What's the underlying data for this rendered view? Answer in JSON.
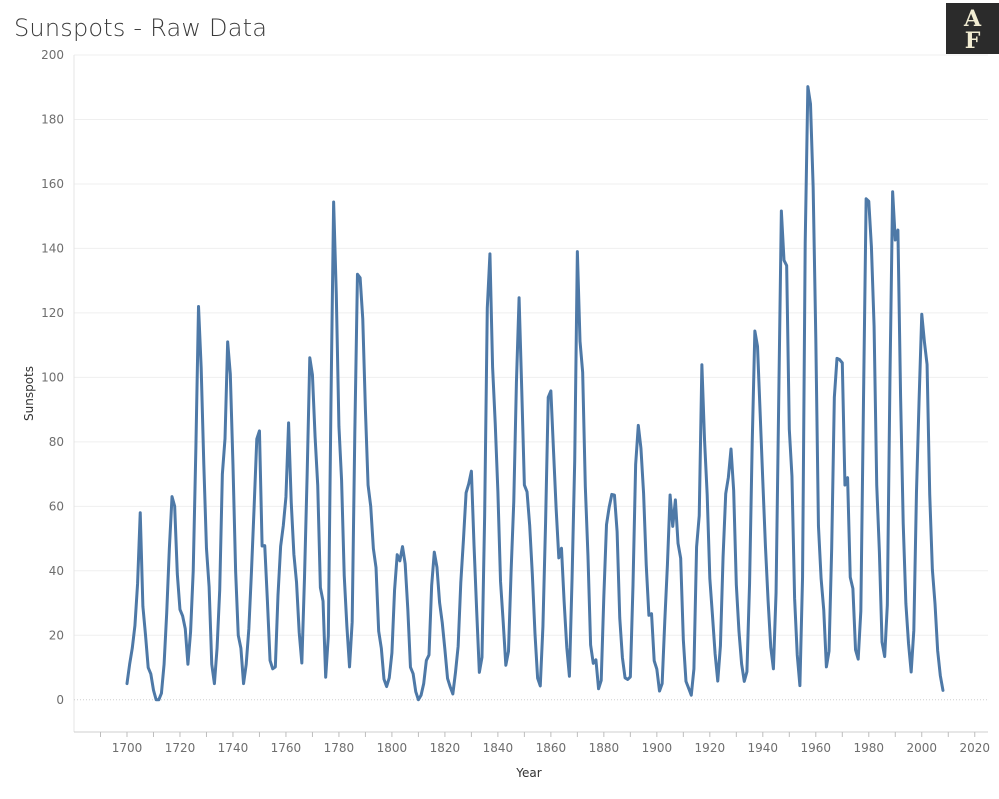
{
  "title": "Sunspots - Raw Data",
  "logo": {
    "icon": "af-monogram-logo",
    "text": "AF",
    "bg": "#2b2b2b",
    "fg": "#f1ecd2"
  },
  "chart_data": {
    "type": "line",
    "xlabel": "Year",
    "ylabel": "Sunspots",
    "xlim": [
      1680,
      2025
    ],
    "ylim": [
      -10,
      200
    ],
    "x_ticks": [
      1700,
      1720,
      1740,
      1760,
      1780,
      1800,
      1820,
      1840,
      1860,
      1880,
      1900,
      1920,
      1940,
      1960,
      1980,
      2000,
      2020
    ],
    "y_ticks": [
      0,
      20,
      40,
      60,
      80,
      100,
      120,
      140,
      160,
      180,
      200
    ],
    "x_tick_labels": [
      "1700",
      "1720",
      "1740",
      "1760",
      "1780",
      "1800",
      "1820",
      "1840",
      "1860",
      "1880",
      "1900",
      "1920",
      "1940",
      "1960",
      "1980",
      "2000",
      "2020"
    ],
    "y_tick_labels": [
      "0",
      "20",
      "40",
      "60",
      "80",
      "100",
      "120",
      "140",
      "160",
      "180",
      "200"
    ],
    "grid": true,
    "zero_line": "dotted",
    "color": "#4e79a7",
    "x": [
      1700,
      1701,
      1702,
      1703,
      1704,
      1705,
      1706,
      1707,
      1708,
      1709,
      1710,
      1711,
      1712,
      1713,
      1714,
      1715,
      1716,
      1717,
      1718,
      1719,
      1720,
      1721,
      1722,
      1723,
      1724,
      1725,
      1726,
      1727,
      1728,
      1729,
      1730,
      1731,
      1732,
      1733,
      1734,
      1735,
      1736,
      1737,
      1738,
      1739,
      1740,
      1741,
      1742,
      1743,
      1744,
      1745,
      1746,
      1747,
      1748,
      1749,
      1750,
      1751,
      1752,
      1753,
      1754,
      1755,
      1756,
      1757,
      1758,
      1759,
      1760,
      1761,
      1762,
      1763,
      1764,
      1765,
      1766,
      1767,
      1768,
      1769,
      1770,
      1771,
      1772,
      1773,
      1774,
      1775,
      1776,
      1777,
      1778,
      1779,
      1780,
      1781,
      1782,
      1783,
      1784,
      1785,
      1786,
      1787,
      1788,
      1789,
      1790,
      1791,
      1792,
      1793,
      1794,
      1795,
      1796,
      1797,
      1798,
      1799,
      1800,
      1801,
      1802,
      1803,
      1804,
      1805,
      1806,
      1807,
      1808,
      1809,
      1810,
      1811,
      1812,
      1813,
      1814,
      1815,
      1816,
      1817,
      1818,
      1819,
      1820,
      1821,
      1822,
      1823,
      1824,
      1825,
      1826,
      1827,
      1828,
      1829,
      1830,
      1831,
      1832,
      1833,
      1834,
      1835,
      1836,
      1837,
      1838,
      1839,
      1840,
      1841,
      1842,
      1843,
      1844,
      1845,
      1846,
      1847,
      1848,
      1849,
      1850,
      1851,
      1852,
      1853,
      1854,
      1855,
      1856,
      1857,
      1858,
      1859,
      1860,
      1861,
      1862,
      1863,
      1864,
      1865,
      1866,
      1867,
      1868,
      1869,
      1870,
      1871,
      1872,
      1873,
      1874,
      1875,
      1876,
      1877,
      1878,
      1879,
      1880,
      1881,
      1882,
      1883,
      1884,
      1885,
      1886,
      1887,
      1888,
      1889,
      1890,
      1891,
      1892,
      1893,
      1894,
      1895,
      1896,
      1897,
      1898,
      1899,
      1900,
      1901,
      1902,
      1903,
      1904,
      1905,
      1906,
      1907,
      1908,
      1909,
      1910,
      1911,
      1912,
      1913,
      1914,
      1915,
      1916,
      1917,
      1918,
      1919,
      1920,
      1921,
      1922,
      1923,
      1924,
      1925,
      1926,
      1927,
      1928,
      1929,
      1930,
      1931,
      1932,
      1933,
      1934,
      1935,
      1936,
      1937,
      1938,
      1939,
      1940,
      1941,
      1942,
      1943,
      1944,
      1945,
      1946,
      1947,
      1948,
      1949,
      1950,
      1951,
      1952,
      1953,
      1954,
      1955,
      1956,
      1957,
      1958,
      1959,
      1960,
      1961,
      1962,
      1963,
      1964,
      1965,
      1966,
      1967,
      1968,
      1969,
      1970,
      1971,
      1972,
      1973,
      1974,
      1975,
      1976,
      1977,
      1978,
      1979,
      1980,
      1981,
      1982,
      1983,
      1984,
      1985,
      1986,
      1987,
      1988,
      1989,
      1990,
      1991,
      1992,
      1993,
      1994,
      1995,
      1996,
      1997,
      1998,
      1999,
      2000,
      2001,
      2002,
      2003,
      2004,
      2005,
      2006,
      2007,
      2008
    ],
    "y": [
      5,
      11,
      16,
      23,
      36,
      58,
      29,
      20,
      10,
      8,
      3,
      0,
      0,
      2,
      11,
      27,
      47,
      63,
      60,
      39,
      28,
      26,
      22,
      11,
      21,
      40,
      78,
      122,
      103,
      73,
      47,
      35,
      11,
      5,
      16,
      34,
      70,
      81,
      111,
      101,
      73,
      40,
      20,
      16,
      5,
      11,
      22,
      40,
      60,
      80.9,
      83.4,
      47.7,
      47.8,
      30.7,
      12.2,
      9.6,
      10.2,
      32.4,
      47.6,
      54,
      62.9,
      85.9,
      61.2,
      45.1,
      36.4,
      20.9,
      11.4,
      37.8,
      69.8,
      106.1,
      100.8,
      81.6,
      66.5,
      34.8,
      30.6,
      7,
      19.8,
      92.5,
      154.4,
      125.9,
      84.8,
      68.1,
      38.5,
      22.8,
      10.2,
      24.1,
      82.9,
      132,
      130.9,
      118.1,
      89.9,
      66.6,
      60,
      46.9,
      41,
      21.3,
      16,
      6.4,
      4.1,
      6.8,
      14.5,
      34,
      45,
      43.1,
      47.5,
      42.2,
      28.1,
      10.1,
      8.1,
      2.5,
      0,
      1.4,
      5,
      12.2,
      13.9,
      35.4,
      45.8,
      41.1,
      30.1,
      23.9,
      15.6,
      6.6,
      4,
      1.8,
      8.5,
      16.6,
      36.3,
      49.6,
      64.2,
      67,
      70.9,
      47.8,
      27.5,
      8.5,
      13.2,
      56.9,
      121.5,
      138.3,
      103.2,
      85.7,
      64.6,
      36.7,
      24.2,
      10.7,
      15,
      40.1,
      61.5,
      98.5,
      124.7,
      96.3,
      66.6,
      64.5,
      54.1,
      39,
      20.6,
      6.7,
      4.3,
      22.7,
      54.8,
      93.8,
      95.8,
      77.2,
      59.1,
      44,
      47,
      30.5,
      16.3,
      7.3,
      37.6,
      74,
      139,
      111.2,
      101.6,
      66.2,
      44.7,
      17,
      11.3,
      12.4,
      3.4,
      6,
      32.3,
      54.3,
      59.7,
      63.7,
      63.5,
      52.2,
      25.4,
      13.1,
      6.8,
      6.3,
      7.1,
      35.6,
      73,
      85.1,
      78,
      64,
      41.8,
      26.2,
      26.7,
      12.1,
      9.5,
      2.7,
      5,
      24.4,
      42,
      63.5,
      53.8,
      62,
      48.5,
      43.9,
      18.6,
      5.7,
      3.6,
      1.4,
      9.6,
      47.4,
      57.1,
      103.9,
      80.6,
      63.6,
      37.6,
      26.1,
      14.2,
      5.8,
      16.7,
      44.3,
      63.9,
      69,
      77.8,
      64.9,
      35.7,
      21.2,
      11.1,
      5.7,
      8.7,
      36.1,
      79.7,
      114.4,
      109.6,
      88.8,
      67.8,
      47.5,
      30.6,
      16.3,
      9.6,
      33.2,
      92.6,
      151.6,
      136.3,
      134.7,
      83.9,
      69.4,
      31.5,
      13.9,
      4.4,
      38,
      141.7,
      190.2,
      184.8,
      159,
      112.3,
      53.9,
      37.6,
      27.9,
      10.2,
      15.1,
      47,
      93.8,
      105.9,
      105.5,
      104.5,
      66.6,
      68.9,
      38,
      34.5,
      15.5,
      12.6,
      27.5,
      92.5,
      155.4,
      154.6,
      140.4,
      115.9,
      66.6,
      45.9,
      17.9,
      13.4,
      29.4,
      100.2,
      157.6,
      142.6,
      145.7,
      94.3,
      54.6,
      29.9,
      17.5,
      8.6,
      21.5,
      64.3,
      93.3,
      119.6,
      111,
      104,
      63.7,
      40.4,
      29.8,
      15.2,
      7.5,
      2.9
    ]
  }
}
